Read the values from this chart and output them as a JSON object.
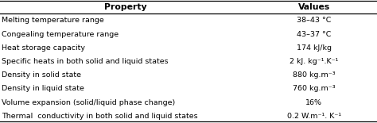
{
  "col_header": [
    "Property",
    "Values"
  ],
  "rows": [
    [
      "Melting temperature range",
      "38–43 °C"
    ],
    [
      "Congealing temperature range",
      "43–37 °C"
    ],
    [
      "Heat storage capacity",
      "174 kJ/kg"
    ],
    [
      "Specific heats in both solid and liquid states",
      "2 kJ. kg⁻¹.K⁻¹"
    ],
    [
      "Density in solid state",
      "880 kg.m⁻³"
    ],
    [
      "Density in liquid state",
      "760 kg.m⁻³"
    ],
    [
      "Volume expansion (solid/liquid phase change)",
      "16%"
    ],
    [
      "Thermal  conductivity in both solid and liquid states",
      "0.2 W.m⁻¹. K⁻¹"
    ]
  ],
  "bg_color": "#ffffff",
  "font_size": 6.8,
  "header_font_size": 7.8,
  "col_split": 0.665,
  "fig_width": 4.74,
  "fig_height": 1.55,
  "dpi": 100
}
